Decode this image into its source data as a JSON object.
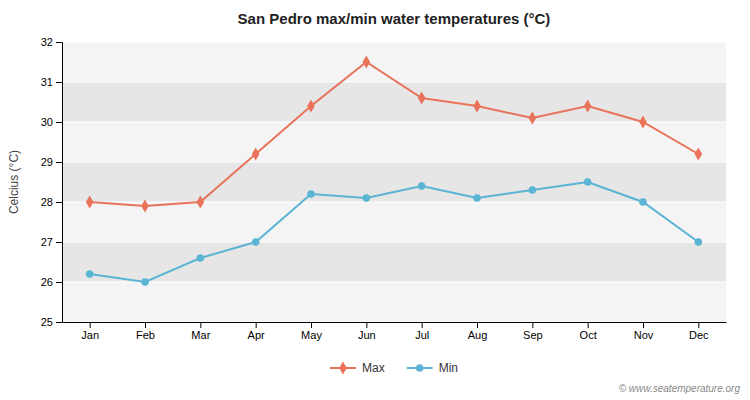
{
  "chart_data": {
    "type": "line",
    "title": "San Pedro max/min water temperatures (°C)",
    "ylabel": "Celcius (°C)",
    "categories": [
      "Jan",
      "Feb",
      "Mar",
      "Apr",
      "May",
      "Jun",
      "Jul",
      "Aug",
      "Sep",
      "Oct",
      "Nov",
      "Dec"
    ],
    "series": [
      {
        "name": "Max",
        "color": "#e8735a",
        "marker": "diamond",
        "values": [
          28.0,
          27.9,
          28.0,
          29.2,
          30.4,
          31.5,
          30.6,
          30.4,
          30.1,
          30.4,
          30.0,
          29.2
        ]
      },
      {
        "name": "Min",
        "color": "#5ab4d4",
        "marker": "circle",
        "values": [
          26.2,
          26.0,
          26.6,
          27.0,
          28.2,
          28.1,
          28.4,
          28.1,
          28.3,
          28.5,
          28.0,
          27.0
        ]
      }
    ],
    "ylim": [
      25,
      32
    ],
    "yticks": [
      25,
      26,
      27,
      28,
      29,
      30,
      31,
      32
    ],
    "grid": true,
    "legend": "bottom",
    "annotations": [
      "© www.seatemperature.org"
    ]
  }
}
